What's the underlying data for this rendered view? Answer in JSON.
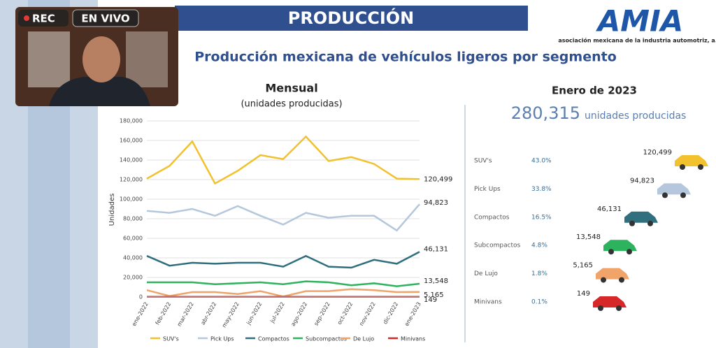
{
  "overlay": {
    "rec": "REC",
    "live": "EN VIVO"
  },
  "header": {
    "title": "PRODUCCIÓN",
    "logo": "AMIA",
    "logo_subtitle": "asociación mexicana de la industria automotriz, a.c."
  },
  "slide_title": "Producción mexicana de vehículos ligeros por segmento",
  "chart_data": {
    "type": "line",
    "title": "Mensual",
    "subtitle": "(unidades producidas)",
    "ylabel": "Unidades",
    "categories": [
      "ene-2022",
      "feb-2022",
      "mar-2022",
      "abr-2022",
      "may-2022",
      "jun-2022",
      "jul-2022",
      "ago-2022",
      "sep-2022",
      "oct-2022",
      "nov-2022",
      "dic-2022",
      "ene-2023"
    ],
    "ylim": [
      0,
      180000
    ],
    "yticks": [
      0,
      {
        "value": 20000,
        "label": "20,000"
      },
      {
        "value": 40000,
        "label": "40,000"
      },
      {
        "value": 60000,
        "label": "60,000"
      },
      {
        "value": 80000,
        "label": "80,000"
      },
      {
        "value": 100000,
        "label": "100,000"
      },
      {
        "value": 120000,
        "label": "120,000"
      },
      {
        "value": 140000,
        "label": "140,000"
      },
      {
        "value": 160000,
        "label": "160,000"
      },
      {
        "value": 180000,
        "label": "180,000"
      }
    ],
    "grid": true,
    "legend": "bottom",
    "series": [
      {
        "name": "SUV's",
        "color": "#f2c12e",
        "values": [
          121000,
          134000,
          159000,
          116000,
          129000,
          145000,
          141000,
          164000,
          139000,
          143000,
          136000,
          121000,
          120499
        ],
        "value_labels": [
          null,
          null,
          null,
          null,
          null,
          null,
          null,
          null,
          null,
          null,
          null,
          null,
          "120,499"
        ]
      },
      {
        "name": "Pick Ups",
        "color": "#b4c7dc",
        "values": [
          88000,
          86000,
          90000,
          83000,
          93000,
          83000,
          74000,
          86000,
          81000,
          83000,
          83000,
          68000,
          94823
        ],
        "value_labels": [
          null,
          null,
          null,
          null,
          null,
          null,
          null,
          null,
          null,
          null,
          null,
          null,
          "94,823"
        ]
      },
      {
        "name": "Compactos",
        "color": "#2f6f7e",
        "values": [
          42000,
          32000,
          35000,
          34000,
          35000,
          35000,
          31000,
          42000,
          31000,
          30000,
          38000,
          34000,
          46131
        ],
        "value_labels": [
          null,
          null,
          null,
          null,
          null,
          null,
          null,
          null,
          null,
          null,
          null,
          null,
          "46,131"
        ]
      },
      {
        "name": "Subcompactos",
        "color": "#2db35d",
        "values": [
          15000,
          15000,
          15000,
          13000,
          14000,
          15000,
          13000,
          16000,
          15000,
          12000,
          14000,
          11000,
          13548
        ],
        "value_labels": [
          null,
          null,
          null,
          null,
          null,
          null,
          null,
          null,
          null,
          null,
          null,
          null,
          "13,548"
        ]
      },
      {
        "name": "De Lujo",
        "color": "#f0a46a",
        "values": [
          7000,
          1000,
          5000,
          5000,
          3000,
          6000,
          500,
          6000,
          6000,
          8000,
          7000,
          5000,
          5165
        ],
        "value_labels": [
          null,
          null,
          null,
          null,
          null,
          null,
          null,
          null,
          null,
          null,
          null,
          null,
          "5,165"
        ]
      },
      {
        "name": "Minivans",
        "color": "#d62828",
        "values": [
          200,
          180,
          200,
          150,
          170,
          160,
          140,
          190,
          170,
          160,
          150,
          140,
          149
        ],
        "value_labels": [
          null,
          null,
          null,
          null,
          null,
          null,
          null,
          null,
          null,
          null,
          null,
          null,
          "149"
        ]
      }
    ]
  },
  "summary": {
    "title": "Enero de 2023",
    "total": "280,315",
    "total_label": "unidades producidas",
    "segments": [
      {
        "name": "SUV's",
        "share": "43.0%",
        "value": "120,499"
      },
      {
        "name": "Pick Ups",
        "share": "33.8%",
        "value": "94,823"
      },
      {
        "name": "Compactos",
        "share": "16.5%",
        "value": "46,131"
      },
      {
        "name": "Subcompactos",
        "share": "4.8%",
        "value": "13,548"
      },
      {
        "name": "De Lujo",
        "share": "1.8%",
        "value": "5,165"
      },
      {
        "name": "Minivans",
        "share": "0.1%",
        "value": "149"
      }
    ]
  }
}
